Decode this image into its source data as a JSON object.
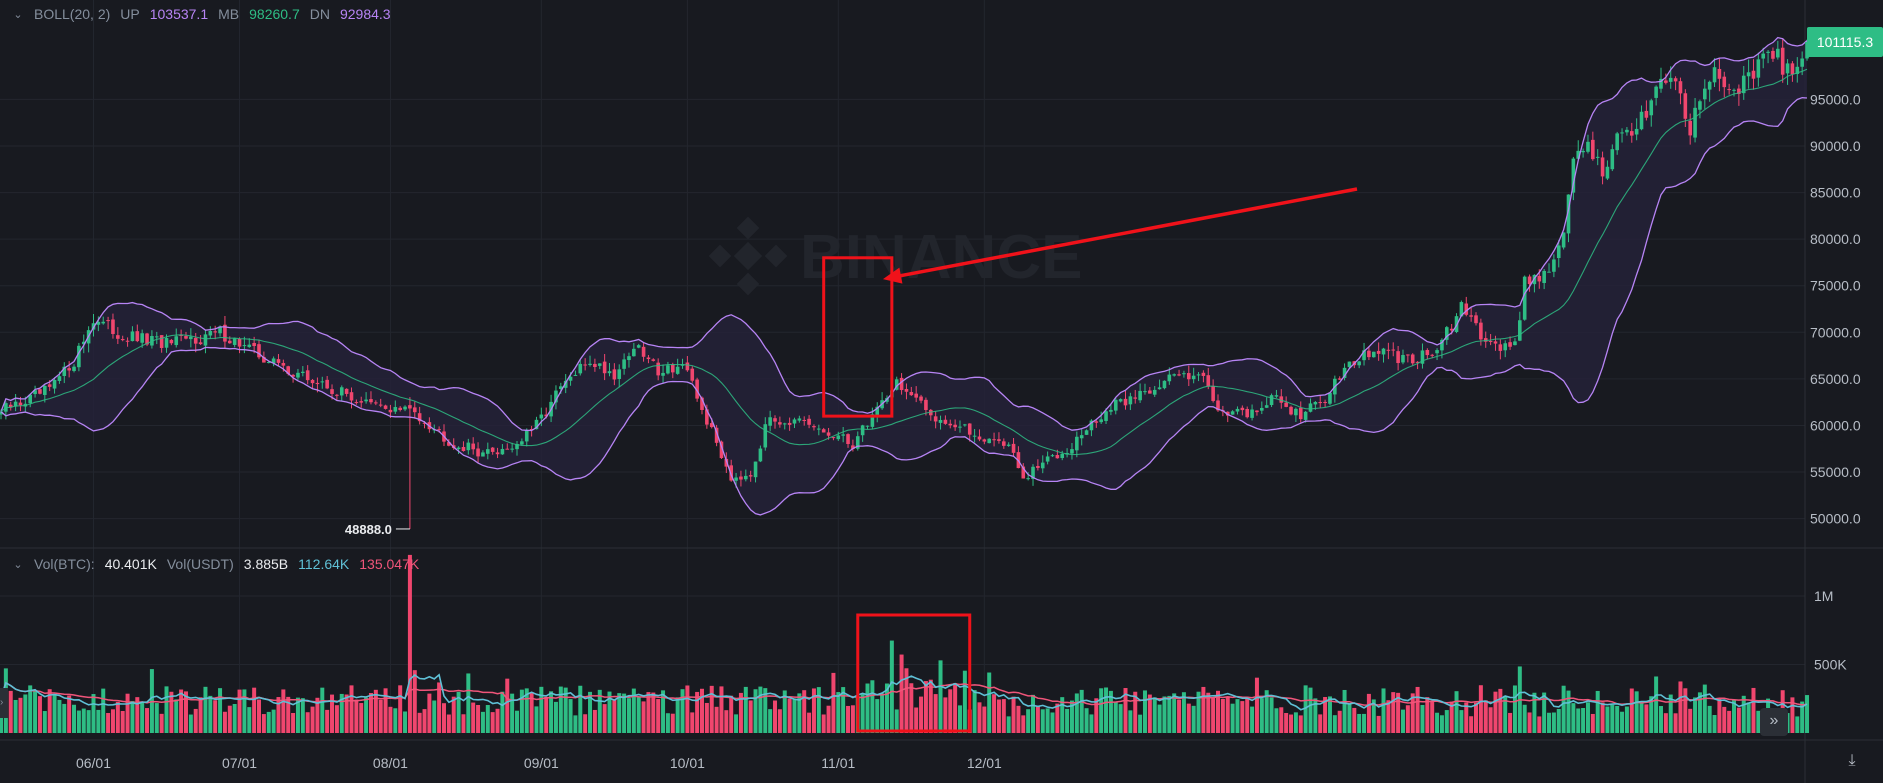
{
  "boll_legend": {
    "name": "BOLL(20, 2)",
    "up_label": "UP",
    "up_value": "103537.1",
    "mb_label": "MB",
    "mb_value": "98260.7",
    "dn_label": "DN",
    "dn_value": "92984.3"
  },
  "vol_legend": {
    "btc_label": "Vol(BTC):",
    "btc_value": "40.401K",
    "usdt_label": "Vol(USDT)",
    "usdt_value": "3.885B",
    "ma1_value": "112.64K",
    "ma2_value": "135.047K"
  },
  "watermark": "BINANCE",
  "current_price": "101115.3",
  "low_label": "48888.0",
  "colors": {
    "background": "#181a20",
    "grid": "#23262e",
    "up": "#2ebd85",
    "down": "#f0466e",
    "boll_band": "#b784f5",
    "boll_mid": "#2ebd85",
    "vol_ma1": "#5fc0d6",
    "vol_ma2": "#f0557a",
    "annotation": "#f0121a",
    "axis_text": "#b7bdc6"
  },
  "icons": {
    "forward": "double-chevron-right-icon",
    "scale": "fit-scale-icon",
    "collapse": "chevron-down-icon"
  },
  "chart_data": {
    "type": "candlestick",
    "price_axis": {
      "ticks": [
        95000,
        90000,
        85000,
        80000,
        75000,
        70000,
        65000,
        60000,
        55000,
        50000
      ],
      "tick_labels": [
        "95000.0",
        "90000.0",
        "85000.0",
        "80000.0",
        "75000.0",
        "70000.0",
        "65000.0",
        "60000.0",
        "55000.0",
        "50000.0"
      ]
    },
    "volume_axis": {
      "ticks": [
        1000000,
        500000
      ],
      "tick_labels": [
        "1M",
        "500K"
      ]
    },
    "x_labels": [
      "06/01",
      "07/01",
      "08/01",
      "09/01",
      "10/01",
      "11/01",
      "12/01"
    ],
    "close_anchors": [
      {
        "d": 0,
        "c": 61500
      },
      {
        "d": 10,
        "c": 63800
      },
      {
        "d": 15,
        "c": 67000
      },
      {
        "d": 19,
        "c": 71500
      },
      {
        "d": 25,
        "c": 69500
      },
      {
        "d": 35,
        "c": 68700
      },
      {
        "d": 45,
        "c": 70000
      },
      {
        "d": 55,
        "c": 67000
      },
      {
        "d": 65,
        "c": 64500
      },
      {
        "d": 77,
        "c": 62000
      },
      {
        "d": 85,
        "c": 61500
      },
      {
        "d": 93,
        "c": 58000
      },
      {
        "d": 100,
        "c": 57000
      },
      {
        "d": 106,
        "c": 58000
      },
      {
        "d": 110,
        "c": 60000
      },
      {
        "d": 115,
        "c": 64000
      },
      {
        "d": 121,
        "c": 67000
      },
      {
        "d": 126,
        "c": 65500
      },
      {
        "d": 130,
        "c": 68500
      },
      {
        "d": 135,
        "c": 66000
      },
      {
        "d": 140,
        "c": 66500
      },
      {
        "d": 145,
        "c": 60500
      },
      {
        "d": 150,
        "c": 54500
      },
      {
        "d": 154,
        "c": 55000
      },
      {
        "d": 158,
        "c": 61000
      },
      {
        "d": 165,
        "c": 60000
      },
      {
        "d": 175,
        "c": 58000
      },
      {
        "d": 180,
        "c": 62000
      },
      {
        "d": 184,
        "c": 64700
      },
      {
        "d": 190,
        "c": 61500
      },
      {
        "d": 200,
        "c": 59000
      },
      {
        "d": 207,
        "c": 58000
      },
      {
        "d": 210,
        "c": 54000
      },
      {
        "d": 214,
        "c": 56000
      },
      {
        "d": 220,
        "c": 58000
      },
      {
        "d": 227,
        "c": 61500
      },
      {
        "d": 234,
        "c": 63500
      },
      {
        "d": 240,
        "c": 65000
      },
      {
        "d": 246,
        "c": 66000
      },
      {
        "d": 250,
        "c": 62000
      },
      {
        "d": 255,
        "c": 61000
      },
      {
        "d": 262,
        "c": 63000
      },
      {
        "d": 267,
        "c": 61000
      },
      {
        "d": 272,
        "c": 63000
      },
      {
        "d": 276,
        "c": 66500
      },
      {
        "d": 283,
        "c": 68000
      },
      {
        "d": 288,
        "c": 67000
      },
      {
        "d": 295,
        "c": 68000
      },
      {
        "d": 300,
        "c": 72500
      },
      {
        "d": 304,
        "c": 70000
      },
      {
        "d": 308,
        "c": 68500
      },
      {
        "d": 311,
        "c": 68500
      },
      {
        "d": 313,
        "c": 75500
      },
      {
        "d": 317,
        "c": 76500
      },
      {
        "d": 319,
        "c": 77500
      },
      {
        "d": 321,
        "c": 81000
      },
      {
        "d": 323,
        "c": 88000
      },
      {
        "d": 326,
        "c": 90500
      },
      {
        "d": 329,
        "c": 87000
      },
      {
        "d": 332,
        "c": 91500
      },
      {
        "d": 335,
        "c": 90500
      },
      {
        "d": 338,
        "c": 94000
      },
      {
        "d": 341,
        "c": 98000
      },
      {
        "d": 344,
        "c": 97000
      },
      {
        "d": 347,
        "c": 92000
      },
      {
        "d": 350,
        "c": 96500
      },
      {
        "d": 353,
        "c": 98000
      },
      {
        "d": 356,
        "c": 96000
      },
      {
        "d": 359,
        "c": 97000
      },
      {
        "d": 362,
        "c": 99000
      },
      {
        "d": 365,
        "c": 99500
      },
      {
        "d": 368,
        "c": 97000
      },
      {
        "d": 371,
        "c": 101115
      }
    ],
    "start_volume_btc": 260000,
    "spike": {
      "date": "08/05",
      "low": 48888,
      "volume_btc": 1300000
    },
    "annotations": {
      "price_box": {
        "from": "10/29",
        "to": "11/12",
        "low": 61000,
        "high": 78000
      },
      "volume_box": {
        "from": "11/05",
        "to": "11/28"
      },
      "arrow_target": {
        "date": "11/11",
        "price": 75500
      }
    }
  }
}
